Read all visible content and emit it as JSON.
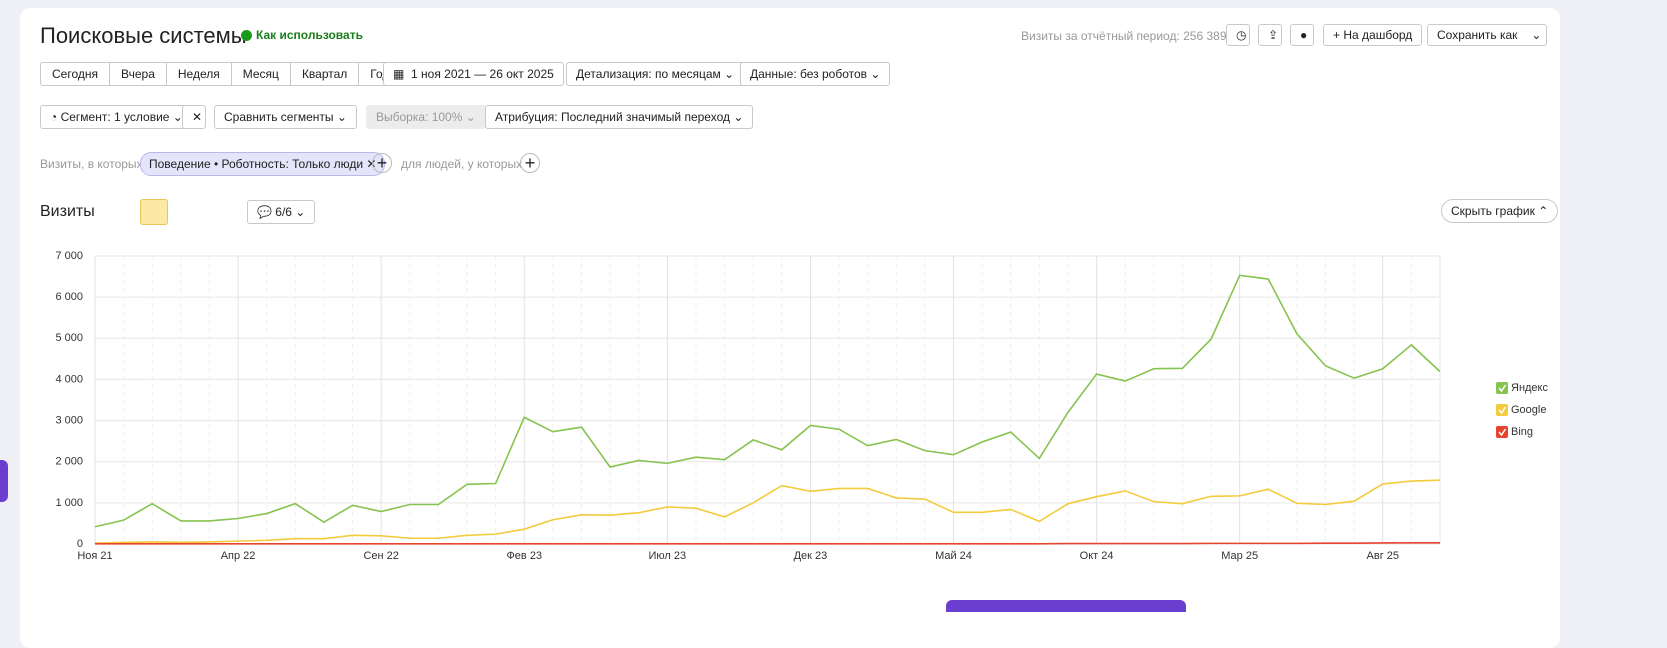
{
  "header": {
    "title": "Поисковые системы",
    "help": "Как использовать",
    "visits_total": "Визиты за отчётный период: 256 389",
    "dashboard": "На дашборд",
    "save": "Сохранить как"
  },
  "periods": [
    "Сегодня",
    "Вчера",
    "Неделя",
    "Месяц",
    "Квартал",
    "Год"
  ],
  "filters": {
    "date_range": "1 ноя 2021 — 26 окт 2025",
    "detail": "Детализация: по месяцам",
    "data": "Данные: без роботов",
    "segment": "Сегмент: 1 условие",
    "compare": "Сравнить сегменты",
    "sample": "Выборка: 100%",
    "attribution": "Атрибуция: Последний значимый переход"
  },
  "condition": {
    "prefix": "Визиты, в которых",
    "chip": "Поведение • Роботность: Только люди",
    "people": "для людей, у которых"
  },
  "chart_header": {
    "title": "Визиты",
    "notes": "6/6",
    "hide": "Скрыть график"
  },
  "chart_data": {
    "type": "line",
    "categories": [
      "Ноя 21",
      null,
      null,
      null,
      null,
      "Апр 22",
      null,
      null,
      null,
      null,
      "Сен 22",
      null,
      null,
      null,
      null,
      "Фев 23",
      null,
      null,
      null,
      null,
      "Июл 23",
      null,
      null,
      null,
      null,
      "Дек 23",
      null,
      null,
      null,
      null,
      "Май 24",
      null,
      null,
      null,
      null,
      "Окт 24",
      null,
      null,
      null,
      null,
      "Мар 25",
      null,
      null,
      null,
      null,
      "Авг 25",
      null,
      null
    ],
    "series": [
      {
        "name": "Яндекс",
        "color": "#86c34f",
        "values": [
          420,
          580,
          980,
          560,
          560,
          620,
          740,
          980,
          530,
          940,
          790,
          960,
          960,
          1450,
          1470,
          3080,
          2730,
          2840,
          1870,
          2030,
          1960,
          2110,
          2050,
          2530,
          2290,
          2880,
          2790,
          2390,
          2540,
          2270,
          2170,
          2480,
          2720,
          2080,
          3200,
          4130,
          3960,
          4260,
          4270,
          4980,
          6530,
          6440,
          5110,
          4330,
          4030,
          4260,
          4840,
          4190
        ]
      },
      {
        "name": "Google",
        "color": "#f3cb3c",
        "values": [
          20,
          40,
          50,
          40,
          50,
          70,
          90,
          130,
          130,
          210,
          200,
          140,
          140,
          210,
          240,
          360,
          590,
          710,
          700,
          760,
          900,
          870,
          660,
          1000,
          1420,
          1280,
          1350,
          1350,
          1120,
          1090,
          770,
          770,
          840,
          550,
          980,
          1150,
          1290,
          1030,
          980,
          1160,
          1170,
          1330,
          990,
          960,
          1040,
          1460,
          1530,
          1550
        ]
      },
      {
        "name": "Bing",
        "color": "#e8432e",
        "values": [
          5,
          5,
          5,
          5,
          5,
          5,
          5,
          5,
          5,
          5,
          5,
          5,
          5,
          5,
          5,
          5,
          5,
          5,
          5,
          5,
          5,
          5,
          5,
          5,
          5,
          5,
          5,
          5,
          5,
          5,
          5,
          5,
          5,
          5,
          10,
          10,
          10,
          10,
          10,
          15,
          15,
          15,
          15,
          20,
          20,
          25,
          30,
          30
        ]
      }
    ],
    "ylim": [
      0,
      7000
    ],
    "yticks": [
      0,
      {
        "value": 1000,
        "label": "1 000"
      },
      {
        "value": 2000,
        "label": "2 000"
      },
      {
        "value": 3000,
        "label": "3 000"
      },
      {
        "value": 4000,
        "label": "4 000"
      },
      {
        "value": 5000,
        "label": "5 000"
      },
      {
        "value": 6000,
        "label": "6 000"
      },
      {
        "value": 7000,
        "label": "7 000"
      }
    ],
    "grid": true,
    "legend": "right"
  }
}
